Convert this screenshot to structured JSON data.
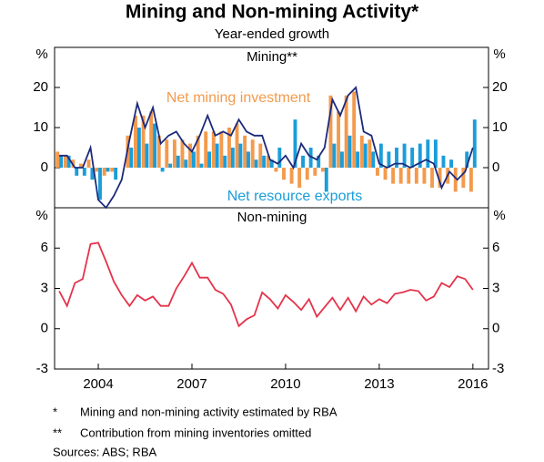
{
  "title": "Mining and Non-mining Activity*",
  "subtitle": "Year-ended growth",
  "unit": "%",
  "footnotes": [
    {
      "marker": "*",
      "text": "Mining and non-mining activity estimated by RBA"
    },
    {
      "marker": "**",
      "text": "Contribution from mining inventories omitted"
    }
  ],
  "sources": "Sources:   ABS; RBA",
  "chart_data": [
    {
      "type": "bar",
      "title": "Mining**",
      "x": [
        2002.75,
        2003,
        2003.25,
        2003.5,
        2003.75,
        2004,
        2004.25,
        2004.5,
        2004.75,
        2005,
        2005.25,
        2005.5,
        2005.75,
        2006,
        2006.25,
        2006.5,
        2006.75,
        2007,
        2007.25,
        2007.5,
        2007.75,
        2008,
        2008.25,
        2008.5,
        2008.75,
        2009,
        2009.25,
        2009.5,
        2009.75,
        2010,
        2010.25,
        2010.5,
        2010.75,
        2011,
        2011.25,
        2011.5,
        2011.75,
        2012,
        2012.25,
        2012.5,
        2012.75,
        2013,
        2013.25,
        2013.5,
        2013.75,
        2014,
        2014.25,
        2014.5,
        2014.75,
        2015,
        2015.25,
        2015.5,
        2015.75,
        2016
      ],
      "xlim": [
        2002.6,
        2016.5
      ],
      "ylim": [
        -10,
        30
      ],
      "yticks": [
        0,
        10,
        20
      ],
      "series": [
        {
          "name": "Net mining investment",
          "type": "bar",
          "color": "#f39a4c",
          "values": [
            4,
            3,
            2,
            1,
            2,
            -1,
            -2,
            -1,
            0,
            8,
            13,
            13,
            14,
            8,
            7,
            7,
            7,
            6,
            8,
            9,
            9,
            9,
            10,
            11,
            8,
            7,
            6,
            3,
            -1,
            -3,
            -4,
            -5,
            -3,
            -2,
            -1,
            18,
            14,
            18,
            19,
            8,
            7,
            -2,
            -3,
            -4,
            -4,
            -4,
            -4,
            -4,
            -5,
            -5,
            -4,
            -6,
            -5,
            -6
          ]
        },
        {
          "name": "Net resource exports",
          "type": "bar",
          "color": "#1b9dd9",
          "values": [
            3,
            3,
            -2,
            -2,
            -3,
            -8,
            -1,
            -3,
            0,
            5,
            10,
            6,
            11,
            -1,
            1,
            3,
            2,
            4,
            1,
            4,
            6,
            3,
            5,
            6,
            4,
            2,
            3,
            2,
            5,
            0,
            12,
            3,
            5,
            3,
            -6,
            6,
            4,
            8,
            4,
            6,
            4,
            6,
            4,
            5,
            6,
            5,
            6,
            7,
            7,
            3,
            2,
            0,
            4,
            12
          ]
        },
        {
          "type": "line",
          "color": "#1c2a7c",
          "values": [
            3,
            3,
            0,
            0,
            5,
            -8,
            -10,
            -7,
            -3,
            7,
            16,
            10,
            15,
            6,
            8,
            9,
            6,
            4,
            8,
            13,
            8,
            9,
            8,
            12,
            9,
            8,
            8,
            2,
            1,
            3,
            0,
            6,
            3,
            2,
            5,
            17,
            13,
            18,
            20,
            9,
            8,
            1,
            0,
            1,
            1,
            0,
            1,
            2,
            1,
            -5,
            -1,
            -3,
            -1,
            5
          ]
        }
      ]
    },
    {
      "type": "line",
      "title": "Non-mining",
      "x": [
        2002.75,
        2003,
        2003.25,
        2003.5,
        2003.75,
        2004,
        2004.25,
        2004.5,
        2004.75,
        2005,
        2005.25,
        2005.5,
        2005.75,
        2006,
        2006.25,
        2006.5,
        2006.75,
        2007,
        2007.25,
        2007.5,
        2007.75,
        2008,
        2008.25,
        2008.5,
        2008.75,
        2009,
        2009.25,
        2009.5,
        2009.75,
        2010,
        2010.25,
        2010.5,
        2010.75,
        2011,
        2011.25,
        2011.5,
        2011.75,
        2012,
        2012.25,
        2012.5,
        2012.75,
        2013,
        2013.25,
        2013.5,
        2013.75,
        2014,
        2014.25,
        2014.5,
        2014.75,
        2015,
        2015.25,
        2015.5,
        2015.75,
        2016
      ],
      "xlim": [
        2002.6,
        2016.5
      ],
      "xticks": [
        2004,
        2007,
        2010,
        2013,
        2016
      ],
      "ylim": [
        -3,
        9
      ],
      "yticks": [
        -3,
        0,
        3,
        6
      ],
      "series": [
        {
          "type": "line",
          "color": "#e5334b",
          "values": [
            2.8,
            1.7,
            3.4,
            3.7,
            6.3,
            6.4,
            5.0,
            3.5,
            2.5,
            1.7,
            2.5,
            2.1,
            2.4,
            1.7,
            1.7,
            3.0,
            3.9,
            4.9,
            3.8,
            3.8,
            2.9,
            2.6,
            1.8,
            0.2,
            0.7,
            1.0,
            2.7,
            2.2,
            1.5,
            2.5,
            2.0,
            1.4,
            2.2,
            0.9,
            1.6,
            2.3,
            1.4,
            2.3,
            1.3,
            2.4,
            1.8,
            2.2,
            1.9,
            2.6,
            2.7,
            2.9,
            2.8,
            2.1,
            2.4,
            3.4,
            3.1,
            3.9,
            3.7,
            2.9
          ]
        }
      ]
    }
  ]
}
